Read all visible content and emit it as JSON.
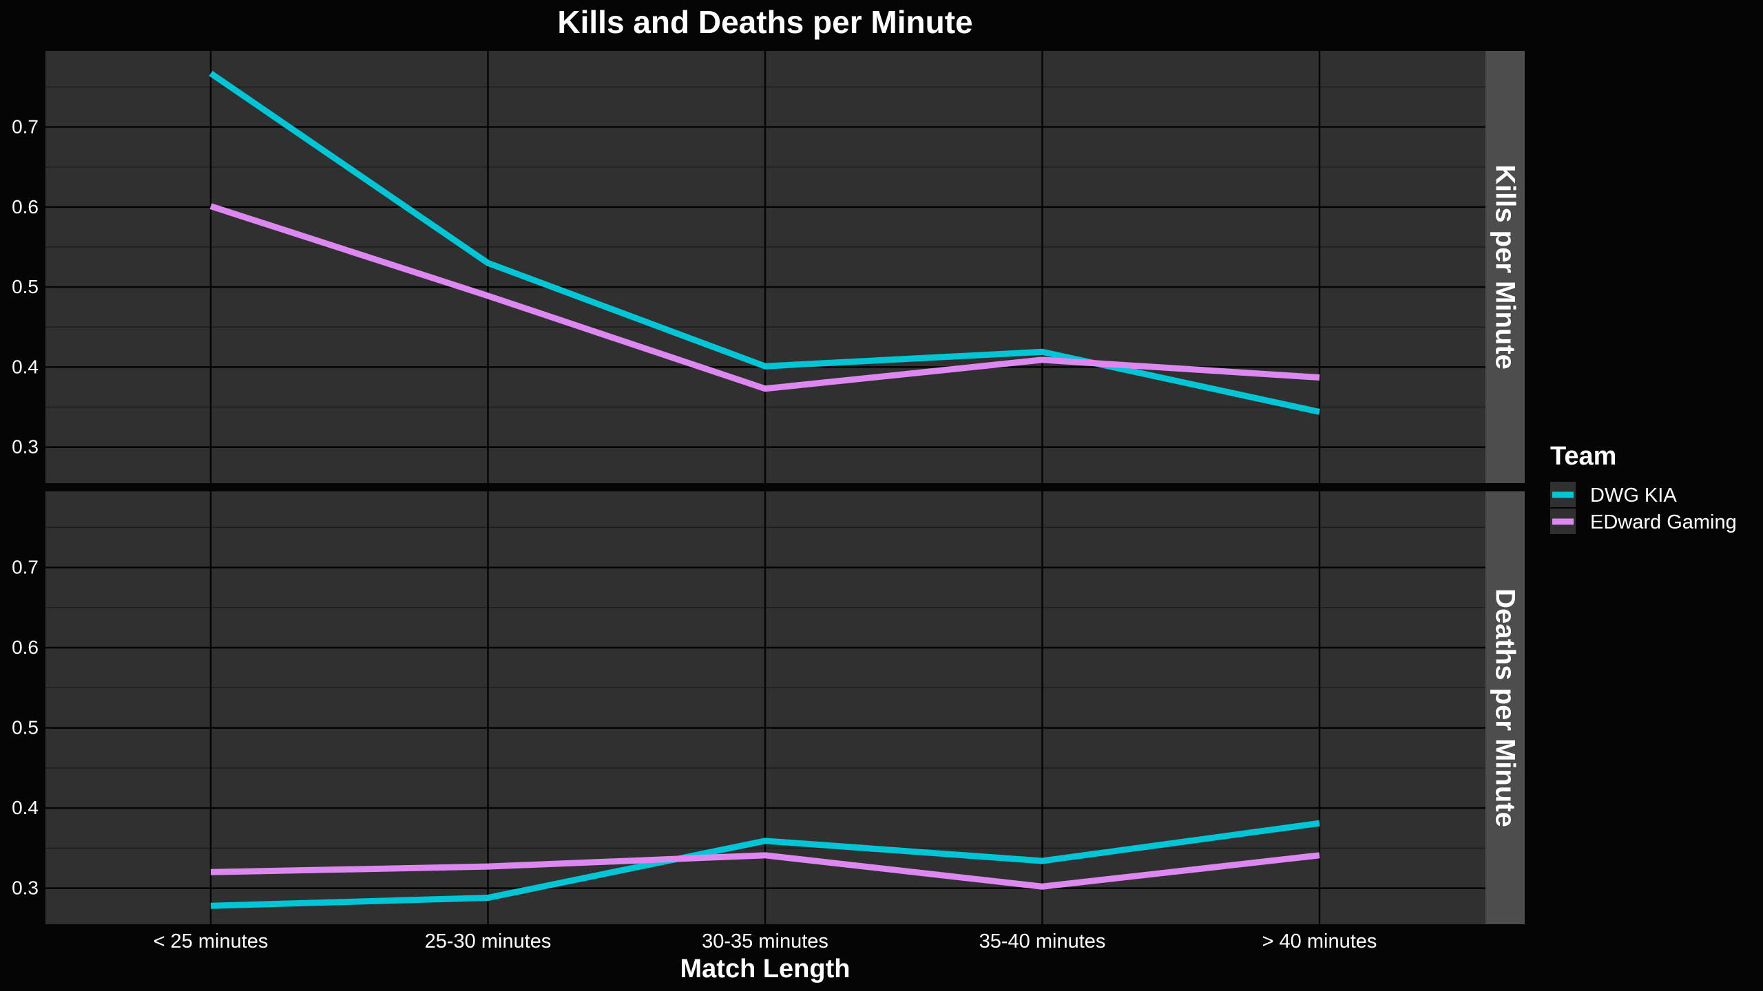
{
  "chart_data": {
    "type": "line",
    "title": "Kills and Deaths per Minute",
    "xlabel": "Match Length",
    "ylabel": "",
    "categories": [
      "< 25 minutes",
      "25-30 minutes",
      "30-35 minutes",
      "35-40 minutes",
      "> 40 minutes"
    ],
    "ylim": [
      0.255,
      0.795
    ],
    "yticks": [
      0.3,
      0.4,
      0.5,
      0.6,
      0.7
    ],
    "grid": true,
    "legend": {
      "title": "Team",
      "position": "right",
      "entries": [
        "DWG KIA",
        "EDward Gaming"
      ]
    },
    "colors": {
      "DWG KIA": "#00c5d5",
      "EDward Gaming": "#dd88f0",
      "panel_background": "#303030",
      "page_background": "#050505",
      "strip_background": "#4d4d4d",
      "grid_major": "#050505",
      "grid_minor": "#1e1e1e",
      "text": "#ffffff"
    },
    "facets": [
      {
        "label": "Kills per Minute",
        "series": [
          {
            "name": "DWG KIA",
            "values": [
              0.767,
              0.53,
              0.401,
              0.419,
              0.344
            ]
          },
          {
            "name": "EDward Gaming",
            "values": [
              0.601,
              0.489,
              0.373,
              0.409,
              0.387
            ]
          }
        ]
      },
      {
        "label": "Deaths per Minute",
        "series": [
          {
            "name": "DWG KIA",
            "values": [
              0.278,
              0.288,
              0.359,
              0.334,
              0.381
            ]
          },
          {
            "name": "EDward Gaming",
            "values": [
              0.32,
              0.327,
              0.341,
              0.302,
              0.341
            ]
          }
        ]
      }
    ]
  }
}
